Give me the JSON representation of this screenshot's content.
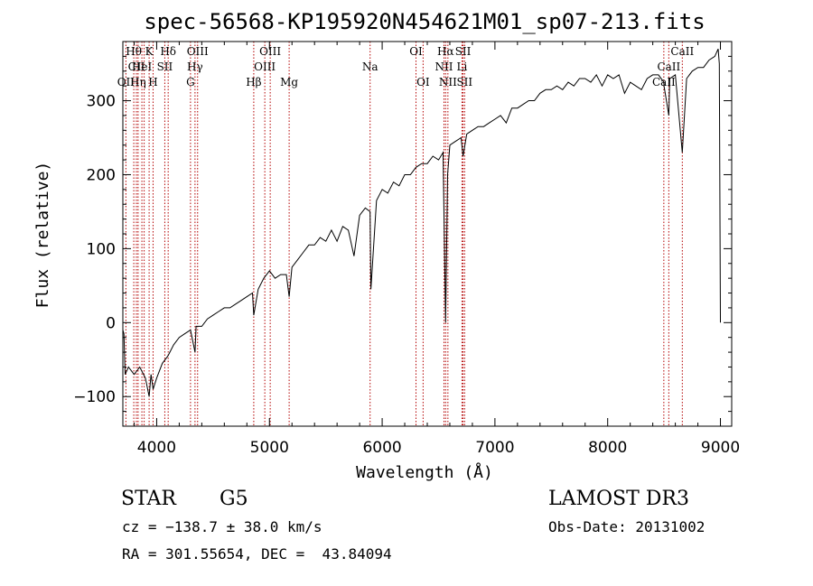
{
  "chart_data": {
    "type": "line",
    "title": "spec-56568-KP195920N454621M01_sp07-213.fits",
    "xlabel": "Wavelength (Å)",
    "ylabel": "Flux (relative)",
    "xlim": [
      3700,
      9100
    ],
    "ylim": [
      -140,
      380
    ],
    "xticks": [
      4000,
      5000,
      6000,
      7000,
      8000,
      9000
    ],
    "xtick_labels": [
      "4000",
      "5000",
      "6000",
      "7000",
      "8000",
      "9000"
    ],
    "yticks": [
      -100,
      0,
      100,
      200,
      300
    ],
    "ytick_labels": [
      "−100",
      "0",
      "100",
      "200",
      "300"
    ],
    "x": [
      3700,
      3710,
      3720,
      3750,
      3800,
      3850,
      3900,
      3933,
      3950,
      3968,
      4000,
      4050,
      4100,
      4150,
      4200,
      4250,
      4300,
      4340,
      4350,
      4400,
      4450,
      4500,
      4550,
      4600,
      4650,
      4700,
      4750,
      4800,
      4850,
      4861,
      4900,
      4950,
      5000,
      5050,
      5100,
      5150,
      5175,
      5200,
      5250,
      5300,
      5350,
      5400,
      5450,
      5500,
      5550,
      5600,
      5650,
      5700,
      5750,
      5800,
      5850,
      5893,
      5900,
      5950,
      6000,
      6050,
      6100,
      6150,
      6200,
      6250,
      6300,
      6350,
      6400,
      6450,
      6500,
      6540,
      6563,
      6580,
      6600,
      6650,
      6700,
      6717,
      6750,
      6800,
      6850,
      6900,
      6950,
      7000,
      7050,
      7100,
      7150,
      7200,
      7250,
      7300,
      7350,
      7400,
      7450,
      7500,
      7550,
      7600,
      7650,
      7700,
      7750,
      7800,
      7850,
      7900,
      7950,
      8000,
      8050,
      8100,
      8150,
      8200,
      8250,
      8300,
      8350,
      8400,
      8450,
      8498,
      8500,
      8542,
      8550,
      8600,
      8662,
      8700,
      8750,
      8800,
      8850,
      8900,
      8950,
      8980,
      8990,
      9000
    ],
    "y": [
      -10,
      -15,
      -70,
      -60,
      -70,
      -60,
      -75,
      -100,
      -70,
      -90,
      -75,
      -55,
      -45,
      -30,
      -20,
      -15,
      -10,
      -40,
      -5,
      -5,
      5,
      10,
      15,
      20,
      20,
      25,
      30,
      35,
      40,
      10,
      45,
      60,
      70,
      60,
      65,
      65,
      35,
      75,
      85,
      95,
      105,
      105,
      115,
      110,
      125,
      110,
      130,
      125,
      90,
      145,
      155,
      150,
      45,
      165,
      180,
      175,
      190,
      185,
      200,
      200,
      210,
      215,
      215,
      225,
      220,
      230,
      0,
      200,
      240,
      245,
      250,
      225,
      255,
      260,
      265,
      265,
      270,
      275,
      280,
      270,
      290,
      290,
      295,
      300,
      300,
      310,
      315,
      315,
      320,
      315,
      325,
      320,
      330,
      330,
      325,
      335,
      320,
      335,
      330,
      335,
      310,
      325,
      320,
      315,
      330,
      335,
      335,
      325,
      320,
      280,
      330,
      335,
      230,
      330,
      340,
      345,
      345,
      355,
      360,
      370,
      350,
      0
    ],
    "series": [
      {
        "name": "Flux",
        "color": "#000000"
      }
    ],
    "lines": [
      {
        "w": 3727,
        "labels": [
          "OII"
        ],
        "row": 3
      },
      {
        "w": 3797,
        "labels": [
          "Hθ"
        ],
        "row": 1
      },
      {
        "w": 3820,
        "labels": [
          "CII"
        ],
        "row": 2
      },
      {
        "w": 3835,
        "labels": [
          "Hη"
        ],
        "row": 3
      },
      {
        "w": 3869,
        "labels": [
          "HeI"
        ],
        "row": 2
      },
      {
        "w": 3889,
        "labels": [],
        "row": 0
      },
      {
        "w": 3933,
        "labels": [
          "K"
        ],
        "row": 1
      },
      {
        "w": 3968,
        "labels": [
          "H"
        ],
        "row": 3
      },
      {
        "w": 4072,
        "labels": [
          "SII"
        ],
        "row": 2
      },
      {
        "w": 4102,
        "labels": [
          "Hδ"
        ],
        "row": 1
      },
      {
        "w": 4300,
        "labels": [
          "G"
        ],
        "row": 3
      },
      {
        "w": 4340,
        "labels": [
          "Hγ"
        ],
        "row": 2
      },
      {
        "w": 4363,
        "labels": [
          "OIII"
        ],
        "row": 1
      },
      {
        "w": 4861,
        "labels": [
          "Hβ"
        ],
        "row": 3
      },
      {
        "w": 4959,
        "labels": [
          "OIII"
        ],
        "row": 2
      },
      {
        "w": 5007,
        "labels": [
          "OIII"
        ],
        "row": 1
      },
      {
        "w": 5175,
        "labels": [
          "Mg"
        ],
        "row": 3
      },
      {
        "w": 5893,
        "labels": [
          "Na"
        ],
        "row": 2
      },
      {
        "w": 6300,
        "labels": [
          "OI"
        ],
        "row": 1
      },
      {
        "w": 6363,
        "labels": [
          "OI"
        ],
        "row": 3
      },
      {
        "w": 6548,
        "labels": [
          "NII"
        ],
        "row": 2
      },
      {
        "w": 6563,
        "labels": [
          "Hα"
        ],
        "row": 1
      },
      {
        "w": 6583,
        "labels": [
          "NII"
        ],
        "row": 3
      },
      {
        "w": 6708,
        "labels": [
          "Li"
        ],
        "row": 2
      },
      {
        "w": 6717,
        "labels": [
          "SII"
        ],
        "row": 1
      },
      {
        "w": 6731,
        "labels": [
          "SII"
        ],
        "row": 3
      },
      {
        "w": 8498,
        "labels": [
          "CaII"
        ],
        "row": 3
      },
      {
        "w": 8542,
        "labels": [
          "CaII"
        ],
        "row": 2
      },
      {
        "w": 8662,
        "labels": [
          "CaII"
        ],
        "row": 1
      }
    ],
    "line_color": "#b30000"
  },
  "info": {
    "class": "STAR",
    "subclass": "G5",
    "survey": "LAMOST DR3",
    "cz": "cz = −138.7 ± 38.0 km/s",
    "obs_date": "Obs-Date: 20131002",
    "coords": "RA = 301.55654, DEC =  43.84094"
  }
}
